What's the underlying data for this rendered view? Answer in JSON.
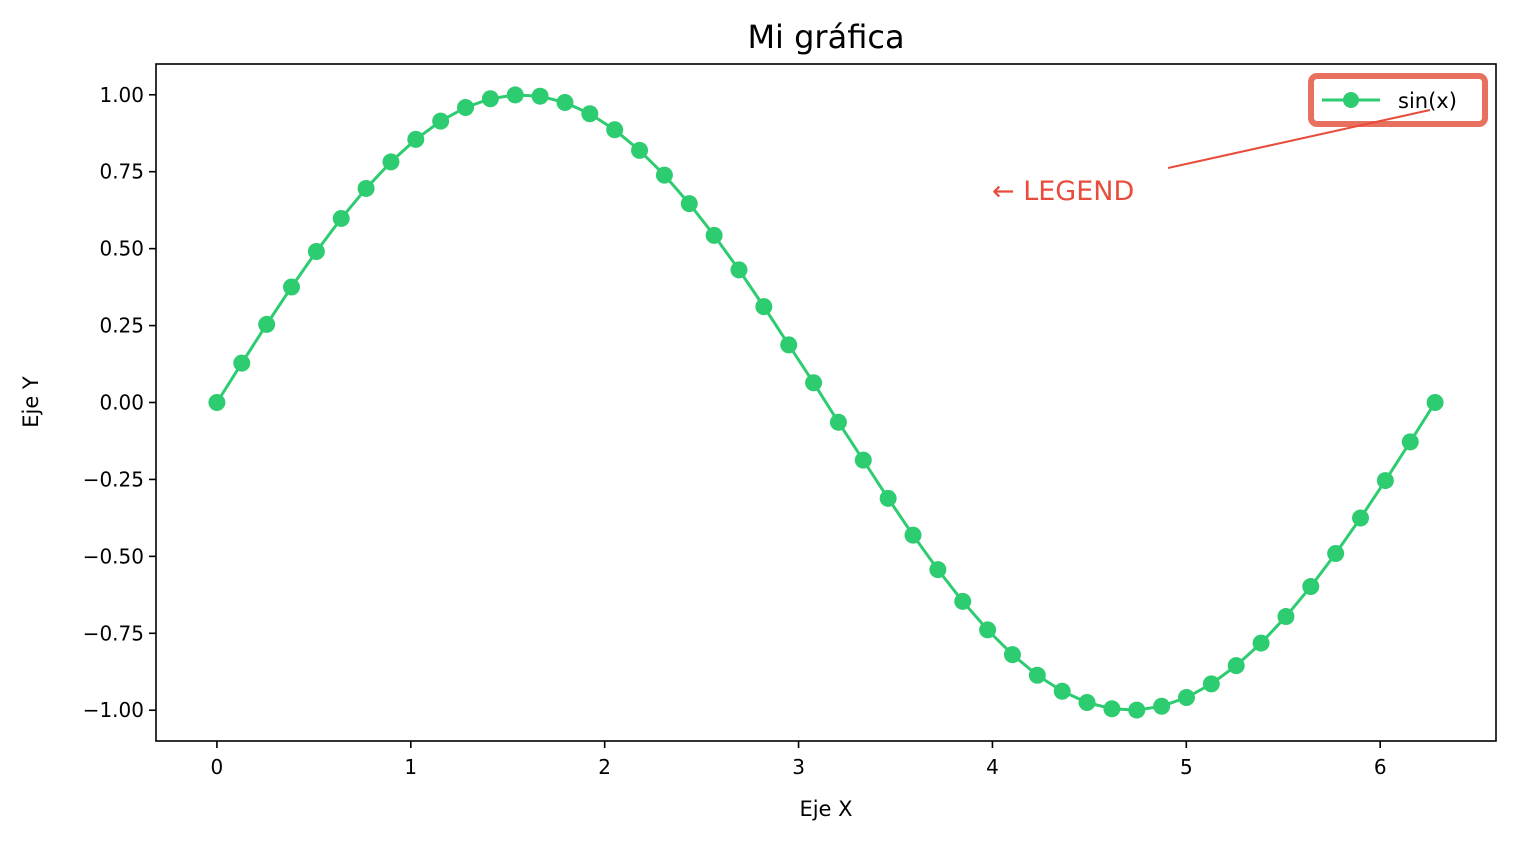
{
  "chart_data": {
    "type": "line",
    "title": "Mi gráfica",
    "xlabel": "Eje X",
    "ylabel": "Eje Y",
    "xlim": [
      -0.3142,
      6.5973
    ],
    "ylim": [
      -1.1,
      1.1
    ],
    "xticks": [
      0,
      1,
      2,
      3,
      4,
      5,
      6
    ],
    "xtick_labels": [
      "0",
      "1",
      "2",
      "3",
      "4",
      "5",
      "6"
    ],
    "yticks": [
      1.0,
      0.75,
      0.5,
      0.25,
      0.0,
      -0.25,
      -0.5,
      -0.75,
      -1.0
    ],
    "ytick_labels": [
      "1.00",
      "0.75",
      "0.50",
      "0.25",
      "0.00",
      "−0.25",
      "−0.50",
      "−0.75",
      "−1.00"
    ],
    "grid": false,
    "legend_position": "top-right",
    "series": [
      {
        "name": "sin(x)",
        "color": "#2ecc71",
        "marker": "circle",
        "x": [
          0.0,
          0.1282,
          0.2565,
          0.3847,
          0.5129,
          0.6411,
          0.7694,
          0.8976,
          1.0258,
          1.1541,
          1.2823,
          1.4105,
          1.5387,
          1.667,
          1.7952,
          1.9234,
          2.0517,
          2.1799,
          2.3081,
          2.4363,
          2.5646,
          2.6928,
          2.821,
          2.9493,
          3.0775,
          3.2057,
          3.3339,
          3.4622,
          3.5904,
          3.7186,
          3.8468,
          3.9751,
          4.1033,
          4.2315,
          4.3598,
          4.488,
          4.6162,
          4.7444,
          4.8727,
          5.0009,
          5.1291,
          5.2574,
          5.3856,
          5.5138,
          5.642,
          5.7703,
          5.8985,
          6.0267,
          6.155,
          6.2832
        ],
        "y": [
          0.0,
          0.1279,
          0.2537,
          0.3753,
          0.4907,
          0.5981,
          0.6956,
          0.7818,
          0.8551,
          0.9144,
          0.9587,
          0.9872,
          0.9995,
          0.9954,
          0.9749,
          0.9383,
          0.8862,
          0.8193,
          0.739,
          0.6464,
          0.5431,
          0.4309,
          0.3116,
          0.1873,
          0.0641,
          -0.0641,
          -0.1873,
          -0.3116,
          -0.4309,
          -0.5431,
          -0.6464,
          -0.739,
          -0.8193,
          -0.8862,
          -0.9383,
          -0.9749,
          -0.9954,
          -0.9995,
          -0.9872,
          -0.9587,
          -0.9144,
          -0.8551,
          -0.7818,
          -0.6956,
          -0.5981,
          -0.4907,
          -0.3753,
          -0.2537,
          -0.1279,
          0.0
        ]
      }
    ],
    "annotation": {
      "text": "← LEGEND",
      "color": "#e74c3c",
      "highlight_color": "#e8705f"
    }
  }
}
